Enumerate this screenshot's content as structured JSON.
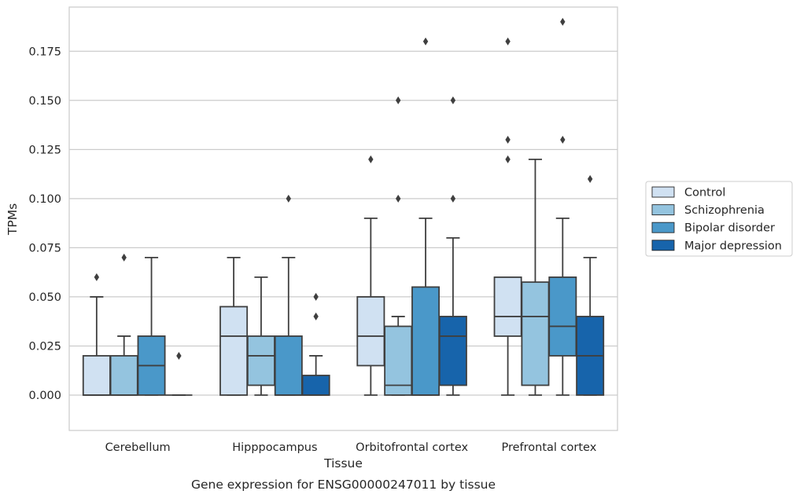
{
  "chart_data": {
    "type": "box",
    "caption": "Gene expression for ENSG00000247011 by tissue",
    "xlabel": "Tissue",
    "ylabel": "TPMs",
    "ylim": [
      -0.018,
      0.1975
    ],
    "yticks": [
      0.0,
      0.025,
      0.05,
      0.075,
      0.1,
      0.125,
      0.15,
      0.175
    ],
    "ytick_labels": [
      "0.000",
      "0.025",
      "0.050",
      "0.075",
      "0.100",
      "0.125",
      "0.150",
      "0.175"
    ],
    "grid": true,
    "legend_position": "right",
    "categories": [
      "Cerebellum",
      "Hipppocampus",
      "Orbitofrontal cortex",
      "Prefrontal cortex"
    ],
    "series": [
      {
        "name": "Control",
        "color": "#d0e1f2",
        "boxes": [
          {
            "whisker_low": 0.0,
            "q1": 0.0,
            "median": 0.0,
            "q3": 0.02,
            "whisker_high": 0.05,
            "outliers": [
              0.06
            ]
          },
          {
            "whisker_low": 0.0,
            "q1": 0.0,
            "median": 0.03,
            "q3": 0.045,
            "whisker_high": 0.07,
            "outliers": []
          },
          {
            "whisker_low": 0.0,
            "q1": 0.015,
            "median": 0.03,
            "q3": 0.05,
            "whisker_high": 0.09,
            "outliers": [
              0.12
            ]
          },
          {
            "whisker_low": 0.0,
            "q1": 0.03,
            "median": 0.04,
            "q3": 0.06,
            "whisker_high": 0.06,
            "outliers": [
              0.12,
              0.13,
              0.18
            ]
          }
        ]
      },
      {
        "name": "Schizophrenia",
        "color": "#94c4df",
        "boxes": [
          {
            "whisker_low": 0.0,
            "q1": 0.0,
            "median": 0.0,
            "q3": 0.02,
            "whisker_high": 0.03,
            "outliers": [
              0.07
            ]
          },
          {
            "whisker_low": 0.0,
            "q1": 0.005,
            "median": 0.02,
            "q3": 0.03,
            "whisker_high": 0.06,
            "outliers": []
          },
          {
            "whisker_low": 0.0,
            "q1": 0.0,
            "median": 0.005,
            "q3": 0.035,
            "whisker_high": 0.04,
            "outliers": [
              0.1,
              0.15
            ]
          },
          {
            "whisker_low": 0.0,
            "q1": 0.005,
            "median": 0.04,
            "q3": 0.0575,
            "whisker_high": 0.12,
            "outliers": []
          }
        ]
      },
      {
        "name": "Bipolar disorder",
        "color": "#4a98c9",
        "boxes": [
          {
            "whisker_low": 0.0,
            "q1": 0.0,
            "median": 0.015,
            "q3": 0.03,
            "whisker_high": 0.07,
            "outliers": []
          },
          {
            "whisker_low": 0.0,
            "q1": 0.0,
            "median": 0.0,
            "q3": 0.03,
            "whisker_high": 0.07,
            "outliers": [
              0.1
            ]
          },
          {
            "whisker_low": 0.0,
            "q1": 0.0,
            "median": 0.0,
            "q3": 0.055,
            "whisker_high": 0.09,
            "outliers": [
              0.18
            ]
          },
          {
            "whisker_low": 0.0,
            "q1": 0.02,
            "median": 0.035,
            "q3": 0.06,
            "whisker_high": 0.09,
            "outliers": [
              0.13,
              0.19
            ]
          }
        ]
      },
      {
        "name": "Major depression",
        "color": "#1764ab",
        "boxes": [
          {
            "whisker_low": 0.0,
            "q1": 0.0,
            "median": 0.0,
            "q3": 0.0,
            "whisker_high": 0.0,
            "outliers": [
              0.02
            ]
          },
          {
            "whisker_low": 0.0,
            "q1": 0.0,
            "median": 0.0,
            "q3": 0.01,
            "whisker_high": 0.02,
            "outliers": [
              0.04,
              0.05
            ]
          },
          {
            "whisker_low": 0.0,
            "q1": 0.005,
            "median": 0.03,
            "q3": 0.04,
            "whisker_high": 0.08,
            "outliers": [
              0.1,
              0.15
            ]
          },
          {
            "whisker_low": 0.0,
            "q1": 0.0,
            "median": 0.02,
            "q3": 0.04,
            "whisker_high": 0.07,
            "outliers": [
              0.11
            ]
          }
        ]
      }
    ]
  }
}
